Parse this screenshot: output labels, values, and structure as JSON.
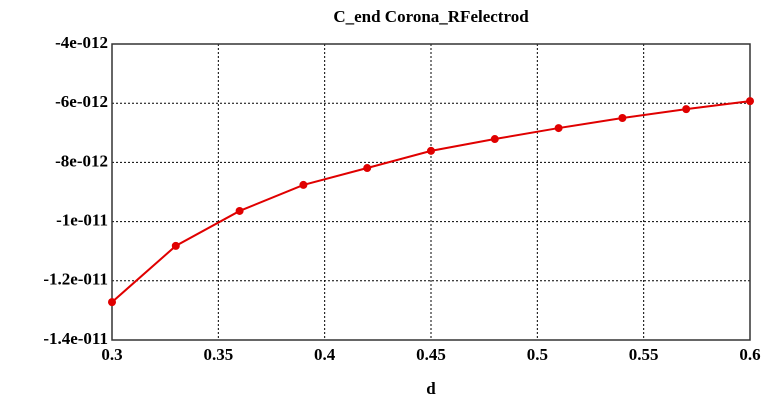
{
  "chart_data": {
    "type": "line",
    "title": "C_end Corona_RFelectrod",
    "x_label": "d",
    "x": [
      0.3,
      0.33,
      0.36,
      0.39,
      0.42,
      0.45,
      0.48,
      0.51,
      0.54,
      0.57,
      0.6
    ],
    "series": [
      {
        "name": "C_end Corona_RFelectrod",
        "color": "#e00000",
        "values": [
          -1.272e-11,
          -1.082e-11,
          -9.64e-12,
          -8.76e-12,
          -8.19e-12,
          -7.61e-12,
          -7.21e-12,
          -6.84e-12,
          -6.5e-12,
          -6.2e-12,
          -5.93e-12
        ]
      }
    ],
    "xlim": [
      0.3,
      0.6
    ],
    "xticks": [
      0.3,
      0.35,
      0.4,
      0.45,
      0.5,
      0.55,
      0.6
    ],
    "ylim": [
      -1.4e-11,
      -4e-12
    ],
    "yticks": [
      {
        "value": -1.4e-11,
        "label": "-1.4e-011"
      },
      {
        "value": -1.2e-11,
        "label": "-1.2e-011"
      },
      {
        "value": -1e-11,
        "label": "-1e-011"
      },
      {
        "value": -8e-12,
        "label": "-8e-012"
      },
      {
        "value": -6e-12,
        "label": "-6e-012"
      },
      {
        "value": -4e-12,
        "label": "-4e-012"
      }
    ],
    "grid": true
  }
}
